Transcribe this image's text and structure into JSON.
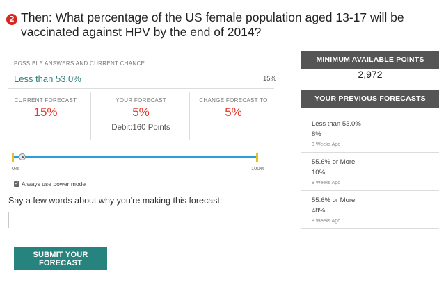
{
  "question": {
    "number": "2",
    "text": "Then: What percentage of the US female population aged 13-17 will be vaccinated against HPV by the end of 2014?"
  },
  "answers": {
    "section_label": "POSSIBLE ANSWERS AND CURRENT CHANCE",
    "selected_answer": "Less than 53.0%",
    "selected_chance": "15%"
  },
  "forecast": {
    "current_label": "CURRENT FORECAST",
    "current_value": "15%",
    "your_label": "YOUR FORECAST",
    "your_value": "5%",
    "change_label": "CHANGE FORECAST TO",
    "change_value": "5%",
    "debit_text": "Debit:160 Points"
  },
  "slider": {
    "value": 0.05,
    "min_label": "0%",
    "max_label": "100%"
  },
  "power_mode": {
    "label": "Always use power mode",
    "checked": true
  },
  "reason": {
    "label": "Say a few words about why you're making this forecast:",
    "value": "",
    "placeholder": ""
  },
  "submit_label": "SUBMIT YOUR FORECAST",
  "sidebar": {
    "min_points_header": "MINIMUM AVAILABLE POINTS",
    "min_points_value": "2,972",
    "previous_header": "YOUR PREVIOUS FORECASTS",
    "previous": [
      {
        "range": "Less than 53.0%",
        "value": "8%",
        "ago": "3 Weeks Ago"
      },
      {
        "range": "55.6% or More",
        "value": "10%",
        "ago": "8 Weeks Ago"
      },
      {
        "range": "55.6% or More",
        "value": "48%",
        "ago": "8 Weeks Ago"
      }
    ]
  },
  "colors": {
    "accent_teal": "#26837e",
    "forecast_red": "#e23a2e",
    "slider_blue": "#2a9fd6",
    "slider_cap_yellow": "#e8c21a",
    "header_gray": "#555555",
    "badge_red": "#d9271e"
  }
}
